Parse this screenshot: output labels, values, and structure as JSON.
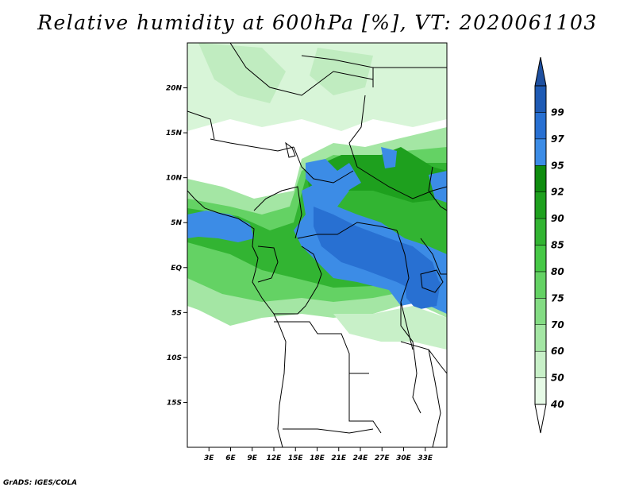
{
  "title": "Relative humidity at 600hPa [%], VT: 2020061103",
  "credit": "GrADS: IGES/COLA",
  "map": {
    "lon_range": [
      0,
      36
    ],
    "lat_range": [
      -20,
      25
    ],
    "lat_ticks": [
      {
        "value": 20,
        "label": "20N"
      },
      {
        "value": 15,
        "label": "15N"
      },
      {
        "value": 10,
        "label": "10N"
      },
      {
        "value": 5,
        "label": "5N"
      },
      {
        "value": 0,
        "label": "EQ"
      },
      {
        "value": -5,
        "label": "5S"
      },
      {
        "value": -10,
        "label": "10S"
      },
      {
        "value": -15,
        "label": "15S"
      }
    ],
    "lon_ticks": [
      {
        "value": 3,
        "label": "3E"
      },
      {
        "value": 6,
        "label": "6E"
      },
      {
        "value": 9,
        "label": "9E"
      },
      {
        "value": 12,
        "label": "12E"
      },
      {
        "value": 15,
        "label": "15E"
      },
      {
        "value": 18,
        "label": "18E"
      },
      {
        "value": 21,
        "label": "21E"
      },
      {
        "value": 24,
        "label": "24E"
      },
      {
        "value": 27,
        "label": "27E"
      },
      {
        "value": 30,
        "label": "30E"
      },
      {
        "value": 33,
        "label": "33E"
      }
    ]
  },
  "colorbar": {
    "levels": [
      {
        "label": "40",
        "color": "#e6fae6"
      },
      {
        "label": "50",
        "color": "#c8f0c8"
      },
      {
        "label": "60",
        "color": "#a4e6a4"
      },
      {
        "label": "70",
        "color": "#84dc84"
      },
      {
        "label": "75",
        "color": "#64d264"
      },
      {
        "label": "80",
        "color": "#46c846"
      },
      {
        "label": "85",
        "color": "#32b432"
      },
      {
        "label": "90",
        "color": "#1ea01e"
      },
      {
        "label": "92",
        "color": "#0f8c0f"
      },
      {
        "label": "95",
        "color": "#3c8ce6"
      },
      {
        "label": "97",
        "color": "#2870d2"
      },
      {
        "label": "99",
        "color": "#1e5ab4"
      }
    ],
    "below_color": "#ffffff",
    "above_color": "#1e50a0"
  }
}
